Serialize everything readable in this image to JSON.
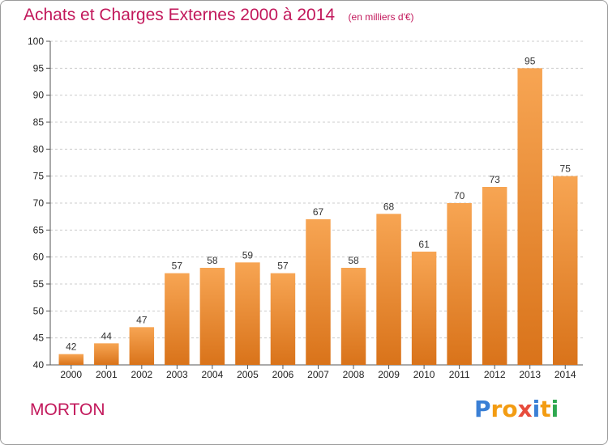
{
  "header": {
    "title": "Achats et Charges Externes 2000 à 2014",
    "unit": "(en milliers d'€)"
  },
  "footer": {
    "place": "MORTON",
    "brand_letters": [
      {
        "char": "P",
        "color": "#3a7fd5"
      },
      {
        "char": "r",
        "color": "#f39c12"
      },
      {
        "char": "o",
        "color": "#f39c12"
      },
      {
        "char": "x",
        "color": "#e74c3c"
      },
      {
        "char": "i",
        "color": "#3a7fd5"
      },
      {
        "char": "t",
        "color": "#f39c12"
      },
      {
        "char": "i",
        "color": "#2fa84f"
      }
    ]
  },
  "colors": {
    "title": "#c2185b",
    "bar_top": "#f7a553",
    "bar_bottom": "#d9731a",
    "grid": "#cccccc"
  },
  "chart_data": {
    "type": "bar",
    "title": "Achats et Charges Externes 2000 à 2014",
    "subtitle": "(en milliers d'€)",
    "categories": [
      "2000",
      "2001",
      "2002",
      "2003",
      "2004",
      "2005",
      "2006",
      "2007",
      "2008",
      "2009",
      "2010",
      "2011",
      "2012",
      "2013",
      "2014"
    ],
    "values": [
      42,
      44,
      47,
      57,
      58,
      59,
      57,
      67,
      58,
      68,
      61,
      70,
      73,
      95,
      75
    ],
    "ylim": [
      40,
      100
    ],
    "yticks": [
      40,
      45,
      50,
      55,
      60,
      65,
      70,
      75,
      80,
      85,
      90,
      95,
      100
    ],
    "grid": "horizontal dashed",
    "data_labels": true
  }
}
